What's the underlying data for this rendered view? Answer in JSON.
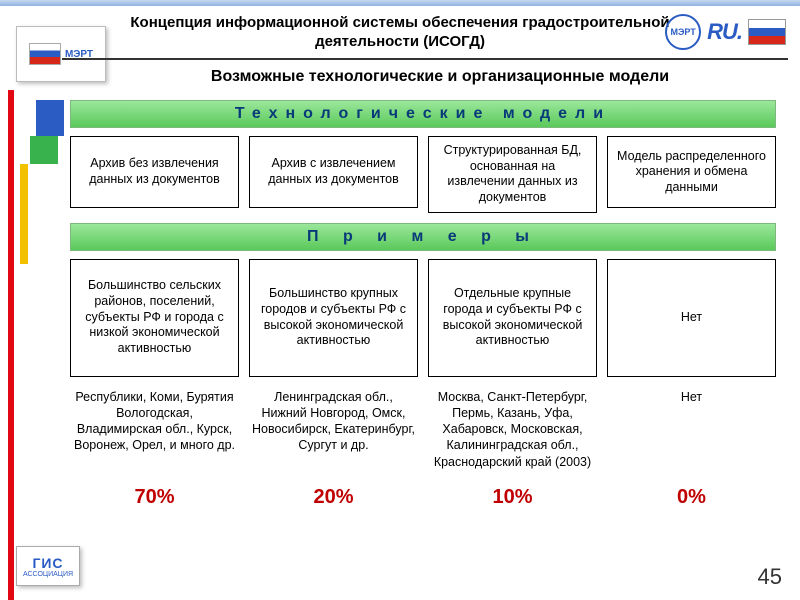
{
  "header": {
    "title": "Концепция информационной системы обеспечения градостроительной деятельности (ИСОГД)",
    "subtitle": "Возможные технологические и организационные модели"
  },
  "banners": {
    "tech": "Технологические   модели",
    "examples": "П р и м е р ы"
  },
  "tech_models": [
    "Архив без извлечения данных из документов",
    "Архив с извлечением данных из документов",
    "Структурированная БД, основанная на извлечении данных из документов",
    "Модель распределенного хранения и обмена данными"
  ],
  "examples": [
    "Большинство сельских районов, поселений, субъекты РФ и города с низкой экономической активностью",
    "Большинство крупных городов и субъекты РФ с высокой экономической активностью",
    "Отдельные крупные города и субъекты РФ с высокой экономической активностью",
    "Нет"
  ],
  "places": [
    "Республики, Коми, Бурятия Вологодская, Владимирская обл., Курск, Воронеж, Орел, и много др.",
    "Ленинградская обл., Нижний Новгород, Омск, Новосибирск, Екатеринбург, Сургут и др.",
    "Москва, Санкт-Петербург, Пермь, Казань, Уфа, Хабаровск, Московская, Калининградская обл., Краснодарский край (2003)",
    "Нет"
  ],
  "percents": {
    "values": [
      "70%",
      "20%",
      "10%",
      "0%"
    ],
    "color": "#c00000"
  },
  "slide_number": "45",
  "logos": {
    "left_text": "МЭРТ",
    "ru_text": "RU.",
    "gis_top": "ГИС",
    "gis_bottom": "АССОЦИАЦИЯ"
  },
  "colors": {
    "banner_text": "#083a7a",
    "stripe_red": "#e30613",
    "stripe_blue": "#2a5cc4",
    "stripe_green": "#37b24d",
    "stripe_yellow": "#f2c200"
  }
}
